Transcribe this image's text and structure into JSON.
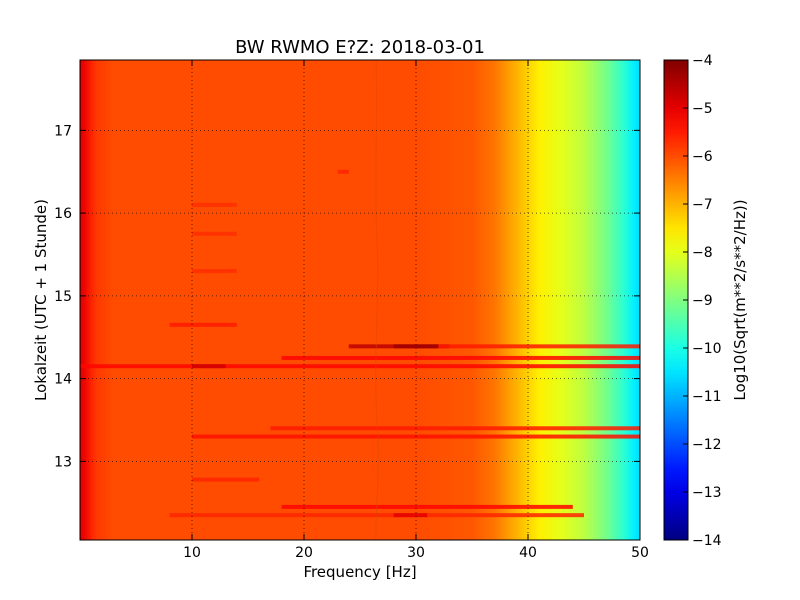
{
  "chart_data": {
    "type": "heatmap",
    "title": "BW RWMO E?Z: 2018-03-01",
    "xlabel": "Frequency [Hz]",
    "ylabel": "Lokalzeit (UTC + 1 Stunde)",
    "xlim": [
      0,
      50
    ],
    "ylim": [
      17.85,
      12.05
    ],
    "x_ticks": [
      10,
      20,
      30,
      40,
      50
    ],
    "y_ticks": [
      13,
      14,
      15,
      16,
      17
    ],
    "grid": true,
    "colormap": "jet",
    "colorbar": {
      "label": "Log10(Sqrt(m**2/s**2/Hz))",
      "range": [
        -14,
        -4
      ],
      "ticks": [
        -4,
        -5,
        -6,
        -7,
        -8,
        -9,
        -10,
        -11,
        -12,
        -13,
        -14
      ]
    },
    "frequency_profile": [
      {
        "hz": 0,
        "value": -5.2
      },
      {
        "hz": 0.5,
        "value": -5.4
      },
      {
        "hz": 1.5,
        "value": -5.8
      },
      {
        "hz": 3,
        "value": -6.0
      },
      {
        "hz": 10,
        "value": -6.0
      },
      {
        "hz": 20,
        "value": -6.0
      },
      {
        "hz": 30,
        "value": -6.0
      },
      {
        "hz": 35,
        "value": -6.1
      },
      {
        "hz": 37,
        "value": -6.4
      },
      {
        "hz": 39,
        "value": -7.0
      },
      {
        "hz": 41,
        "value": -7.6
      },
      {
        "hz": 43,
        "value": -8.0
      },
      {
        "hz": 45,
        "value": -8.4
      },
      {
        "hz": 47,
        "value": -9.1
      },
      {
        "hz": 48.5,
        "value": -9.8
      },
      {
        "hz": 49.5,
        "value": -10.4
      },
      {
        "hz": 50,
        "value": -10.6
      }
    ],
    "stripes": [
      {
        "time": 12.35,
        "hz_from": 8,
        "hz_to": 45,
        "value": -5.6
      },
      {
        "time": 12.45,
        "hz_from": 18,
        "hz_to": 44,
        "value": -5.3
      },
      {
        "time": 12.35,
        "hz_from": 28,
        "hz_to": 31,
        "value": -5.0
      },
      {
        "time": 12.78,
        "hz_from": 10,
        "hz_to": 16,
        "value": -5.6
      },
      {
        "time": 13.3,
        "hz_from": 10,
        "hz_to": 50,
        "value": -5.4
      },
      {
        "time": 13.4,
        "hz_from": 17,
        "hz_to": 50,
        "value": -5.5
      },
      {
        "time": 14.15,
        "hz_from": 0,
        "hz_to": 50,
        "value": -5.3
      },
      {
        "time": 14.15,
        "hz_from": 10,
        "hz_to": 13,
        "value": -4.8
      },
      {
        "time": 14.25,
        "hz_from": 18,
        "hz_to": 50,
        "value": -5.3
      },
      {
        "time": 14.39,
        "hz_from": 24,
        "hz_to": 33,
        "value": -4.6
      },
      {
        "time": 14.39,
        "hz_from": 28,
        "hz_to": 32,
        "value": -4.3
      },
      {
        "time": 14.39,
        "hz_from": 32,
        "hz_to": 50,
        "value": -5.5
      },
      {
        "time": 14.65,
        "hz_from": 8,
        "hz_to": 14,
        "value": -5.5
      },
      {
        "time": 15.3,
        "hz_from": 10,
        "hz_to": 14,
        "value": -5.7
      },
      {
        "time": 15.75,
        "hz_from": 10,
        "hz_to": 14,
        "value": -5.7
      },
      {
        "time": 16.1,
        "hz_from": 10,
        "hz_to": 14,
        "value": -5.7
      },
      {
        "time": 16.5,
        "hz_from": 23,
        "hz_to": 24,
        "value": -5.6
      }
    ]
  }
}
